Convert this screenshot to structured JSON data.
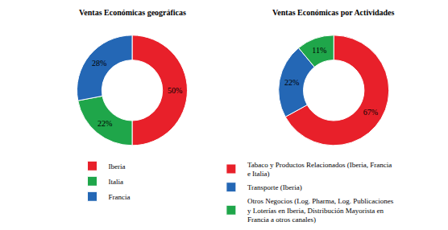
{
  "chart_data": [
    {
      "type": "pie",
      "title": "Ventas Económicas geográficas",
      "categories": [
        "Iberia",
        "Italia",
        "Francia"
      ],
      "values": [
        50,
        22,
        28
      ],
      "value_labels": [
        "50%",
        "22%",
        "28%"
      ],
      "colors": [
        "#e8202a",
        "#1fa64a",
        "#2467b5"
      ],
      "data_labels": true,
      "legend": "bottom"
    },
    {
      "type": "pie",
      "title": "Ventas Económicas por Actividades",
      "categories": [
        "Tabaco y Productos Relacionados (Iberia, Francia e Italia)",
        "Transporte (Iberia)",
        "Otros Negocios (Log. Pharma, Log. Publicaciones y Loterías en Iberia, Distribución Mayorista en Francia a otros canales)"
      ],
      "values": [
        67,
        22,
        11
      ],
      "value_labels": [
        "67%",
        "22%",
        "11%"
      ],
      "colors": [
        "#e8202a",
        "#2467b5",
        "#1fa64a"
      ],
      "data_labels": true,
      "legend": "bottom"
    }
  ]
}
